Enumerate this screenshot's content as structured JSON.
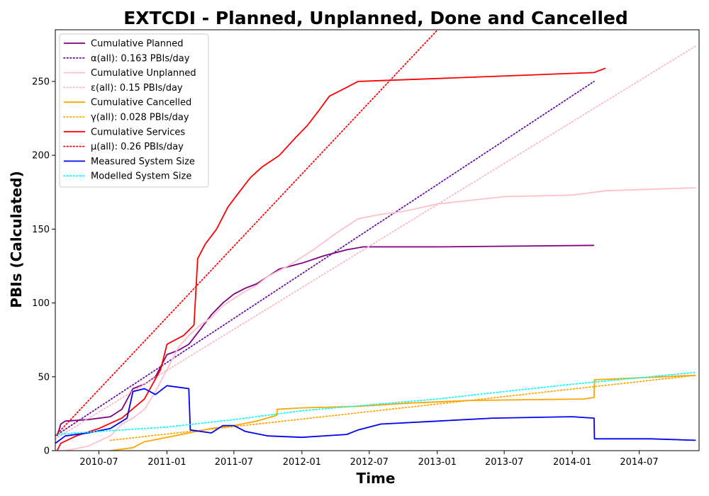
{
  "chart_data": {
    "type": "line",
    "title": "EXTCDI - Planned, Unplanned, Done  and Cancelled",
    "xlabel": "Time",
    "ylabel": "PBIs (Calculated)",
    "xlim": [
      "2010-03-05",
      "2014-12-10"
    ],
    "ylim": [
      0,
      285
    ],
    "x_ticks": [
      "2010-07",
      "2011-01",
      "2011-07",
      "2012-01",
      "2012-07",
      "2013-01",
      "2013-07",
      "2014-01",
      "2014-07"
    ],
    "x_tick_dates": [
      "2010-07-01",
      "2011-01-01",
      "2011-07-01",
      "2012-01-01",
      "2012-07-01",
      "2013-01-01",
      "2013-07-01",
      "2014-01-01",
      "2014-07-01"
    ],
    "y_ticks": [
      0,
      50,
      100,
      150,
      200,
      250
    ],
    "grid": false,
    "legend_position": "top-left",
    "series": [
      {
        "name": "Cumulative Planned",
        "color": "#800080",
        "style": "solid",
        "points": [
          [
            "2010-03-10",
            10
          ],
          [
            "2010-03-20",
            18
          ],
          [
            "2010-04-01",
            20
          ],
          [
            "2010-06-01",
            21
          ],
          [
            "2010-08-01",
            23
          ],
          [
            "2010-09-01",
            28
          ],
          [
            "2010-10-01",
            42
          ],
          [
            "2010-11-01",
            45
          ],
          [
            "2010-12-01",
            50
          ],
          [
            "2011-01-01",
            65
          ],
          [
            "2011-02-01",
            68
          ],
          [
            "2011-03-01",
            72
          ],
          [
            "2011-04-01",
            82
          ],
          [
            "2011-05-01",
            92
          ],
          [
            "2011-06-01",
            100
          ],
          [
            "2011-07-01",
            106
          ],
          [
            "2011-08-01",
            110
          ],
          [
            "2011-09-01",
            113
          ],
          [
            "2011-10-01",
            118
          ],
          [
            "2011-11-01",
            123
          ],
          [
            "2012-01-01",
            127
          ],
          [
            "2012-03-01",
            132
          ],
          [
            "2012-05-01",
            136
          ],
          [
            "2012-06-15",
            138
          ],
          [
            "2013-01-01",
            138
          ],
          [
            "2014-03-01",
            139
          ]
        ]
      },
      {
        "name": "α(all): 0.163 PBIs/day",
        "color": "#6a0dad",
        "style": "dotted",
        "points": [
          [
            "2010-03-05",
            10
          ],
          [
            "2014-03-01",
            250
          ]
        ]
      },
      {
        "name": "Cumulative Unplanned",
        "color": "#ffc0cb",
        "style": "solid",
        "points": [
          [
            "2010-04-01",
            0
          ],
          [
            "2010-06-01",
            3
          ],
          [
            "2010-08-01",
            10
          ],
          [
            "2010-09-01",
            18
          ],
          [
            "2010-10-01",
            22
          ],
          [
            "2010-11-01",
            28
          ],
          [
            "2010-12-01",
            40
          ],
          [
            "2011-01-01",
            55
          ],
          [
            "2011-02-01",
            70
          ],
          [
            "2011-03-01",
            78
          ],
          [
            "2011-04-01",
            85
          ],
          [
            "2011-05-01",
            90
          ],
          [
            "2011-06-01",
            98
          ],
          [
            "2011-07-01",
            103
          ],
          [
            "2011-08-01",
            108
          ],
          [
            "2011-09-01",
            112
          ],
          [
            "2011-10-01",
            118
          ],
          [
            "2011-12-01",
            126
          ],
          [
            "2012-02-01",
            136
          ],
          [
            "2012-04-01",
            147
          ],
          [
            "2012-06-01",
            157
          ],
          [
            "2012-08-01",
            160
          ],
          [
            "2012-10-01",
            162
          ],
          [
            "2013-01-01",
            167
          ],
          [
            "2013-07-01",
            172
          ],
          [
            "2014-01-01",
            173
          ],
          [
            "2014-04-01",
            176
          ],
          [
            "2014-12-01",
            178
          ]
        ]
      },
      {
        "name": "ε(all): 0.15 PBIs/day",
        "color": "#ffb6c1",
        "style": "dotted",
        "points": [
          [
            "2010-03-05",
            8
          ],
          [
            "2014-12-01",
            274
          ]
        ]
      },
      {
        "name": "Cumulative Cancelled",
        "color": "#ffa500",
        "style": "solid",
        "points": [
          [
            "2010-08-01",
            0
          ],
          [
            "2010-10-01",
            2
          ],
          [
            "2010-11-01",
            6
          ],
          [
            "2011-01-01",
            9
          ],
          [
            "2011-03-01",
            12
          ],
          [
            "2011-05-01",
            15
          ],
          [
            "2011-07-01",
            17
          ],
          [
            "2011-09-01",
            20
          ],
          [
            "2011-10-25",
            24
          ],
          [
            "2011-10-26",
            28
          ],
          [
            "2012-01-01",
            29
          ],
          [
            "2012-06-01",
            30
          ],
          [
            "2012-10-01",
            32
          ],
          [
            "2013-04-01",
            34
          ],
          [
            "2014-02-01",
            35
          ],
          [
            "2014-03-01",
            36
          ],
          [
            "2014-03-02",
            48
          ],
          [
            "2014-12-01",
            51
          ]
        ]
      },
      {
        "name": "γ(all): 0.028 PBIs/day",
        "color": "#ffa500",
        "style": "dotted",
        "points": [
          [
            "2010-08-01",
            7
          ],
          [
            "2014-12-01",
            51
          ]
        ]
      },
      {
        "name": "Cumulative Services",
        "color": "#ff0000",
        "style": "solid",
        "points": [
          [
            "2010-03-10",
            0
          ],
          [
            "2010-03-20",
            5
          ],
          [
            "2010-05-01",
            10
          ],
          [
            "2010-07-01",
            15
          ],
          [
            "2010-09-01",
            22
          ],
          [
            "2010-11-01",
            35
          ],
          [
            "2010-12-15",
            55
          ],
          [
            "2011-01-01",
            72
          ],
          [
            "2011-02-15",
            78
          ],
          [
            "2011-03-15",
            85
          ],
          [
            "2011-03-25",
            130
          ],
          [
            "2011-04-15",
            140
          ],
          [
            "2011-05-15",
            150
          ],
          [
            "2011-06-15",
            165
          ],
          [
            "2011-07-15",
            175
          ],
          [
            "2011-08-15",
            185
          ],
          [
            "2011-09-15",
            192
          ],
          [
            "2011-11-01",
            200
          ],
          [
            "2011-12-15",
            212
          ],
          [
            "2012-01-15",
            220
          ],
          [
            "2012-02-15",
            230
          ],
          [
            "2012-03-15",
            240
          ],
          [
            "2012-05-01",
            246
          ],
          [
            "2012-06-01",
            250
          ],
          [
            "2013-01-01",
            252
          ],
          [
            "2014-03-01",
            256
          ],
          [
            "2014-04-01",
            259
          ]
        ]
      },
      {
        "name": "μ(all): 0.26 PBIs/day",
        "color": "#ff0000",
        "style": "dotted",
        "points": [
          [
            "2010-03-05",
            10
          ],
          [
            "2013-01-02",
            285
          ]
        ]
      },
      {
        "name": "Measured System Size",
        "color": "#0000ff",
        "style": "solid",
        "points": [
          [
            "2010-03-05",
            5
          ],
          [
            "2010-04-01",
            10
          ],
          [
            "2010-06-01",
            12
          ],
          [
            "2010-08-01",
            15
          ],
          [
            "2010-09-15",
            22
          ],
          [
            "2010-10-01",
            40
          ],
          [
            "2010-11-01",
            42
          ],
          [
            "2010-12-01",
            38
          ],
          [
            "2011-01-01",
            44
          ],
          [
            "2011-03-01",
            42
          ],
          [
            "2011-03-05",
            14
          ],
          [
            "2011-05-01",
            12
          ],
          [
            "2011-06-01",
            17
          ],
          [
            "2011-07-01",
            17
          ],
          [
            "2011-08-01",
            13
          ],
          [
            "2011-10-01",
            10
          ],
          [
            "2012-01-01",
            9
          ],
          [
            "2012-05-01",
            11
          ],
          [
            "2012-06-01",
            14
          ],
          [
            "2012-08-01",
            18
          ],
          [
            "2013-01-01",
            20
          ],
          [
            "2013-06-01",
            22
          ],
          [
            "2014-01-01",
            23
          ],
          [
            "2014-03-01",
            22
          ],
          [
            "2014-03-02",
            8
          ],
          [
            "2014-08-01",
            8
          ],
          [
            "2014-12-01",
            7
          ]
        ]
      },
      {
        "name": "Modelled System Size",
        "color": "#00ffff",
        "style": "dotted",
        "points": [
          [
            "2010-03-05",
            11
          ],
          [
            "2010-07-01",
            13
          ],
          [
            "2011-01-01",
            16
          ],
          [
            "2011-07-01",
            21
          ],
          [
            "2012-01-01",
            27
          ],
          [
            "2012-07-01",
            31
          ],
          [
            "2013-01-01",
            35
          ],
          [
            "2013-07-01",
            40
          ],
          [
            "2014-01-01",
            45
          ],
          [
            "2014-12-01",
            53
          ]
        ]
      }
    ]
  }
}
